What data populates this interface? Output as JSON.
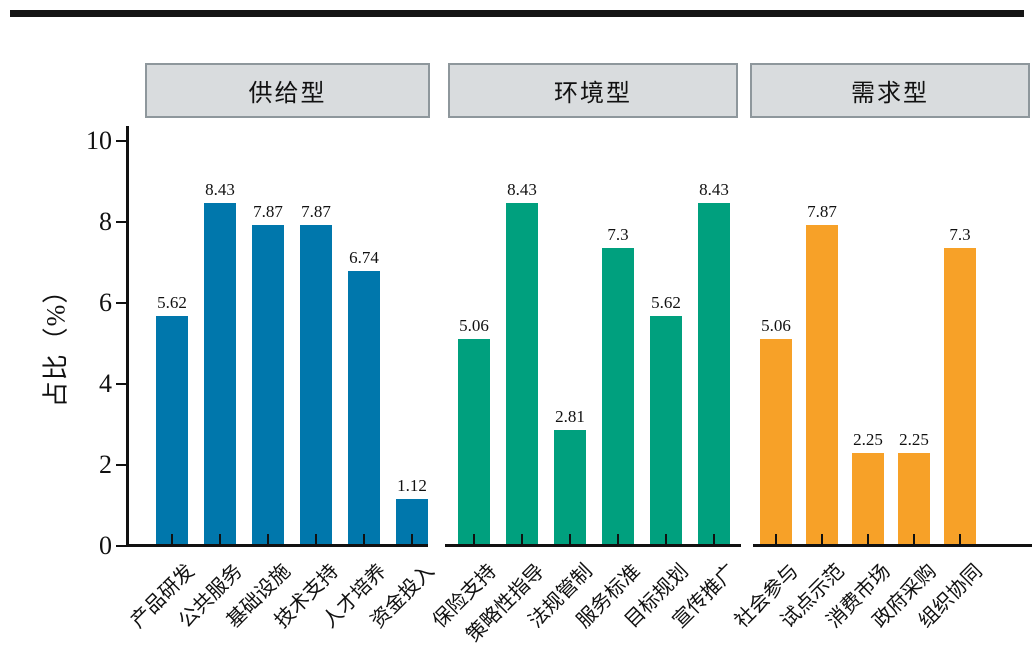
{
  "chart_data": {
    "type": "bar",
    "title": "",
    "ylabel": "占比（%）",
    "xlabel": "",
    "ylim": [
      0,
      10
    ],
    "yticks": [
      0,
      2,
      4,
      6,
      8,
      10
    ],
    "grid": false,
    "legend_position": "none",
    "value_labels_shown": true,
    "colors": {
      "supply_blue": "#0077AC",
      "environment_green": "#00A07E",
      "demand_orange": "#F7A128",
      "header_fill": "#D9DCDE",
      "header_border": "#8E979C",
      "axis": "#111111"
    },
    "groups": [
      {
        "label": "供给型",
        "color": "#0077AC",
        "categories": [
          "产品研发",
          "公共服务",
          "基础设施",
          "技术支持",
          "人才培养",
          "资金投入"
        ],
        "values": [
          5.62,
          8.43,
          7.87,
          7.87,
          6.74,
          1.12
        ]
      },
      {
        "label": "环境型",
        "color": "#00A07E",
        "categories": [
          "保险支持",
          "策略性指导",
          "法规管制",
          "服务标准",
          "目标规划",
          "宣传推广"
        ],
        "values": [
          5.06,
          8.43,
          2.81,
          7.3,
          5.62,
          8.43
        ]
      },
      {
        "label": "需求型",
        "color": "#F7A128",
        "categories": [
          "社会参与",
          "试点示范",
          "消费市场",
          "政府采购",
          "组织协同"
        ],
        "values": [
          5.06,
          7.87,
          2.25,
          2.25,
          7.3
        ]
      }
    ]
  }
}
